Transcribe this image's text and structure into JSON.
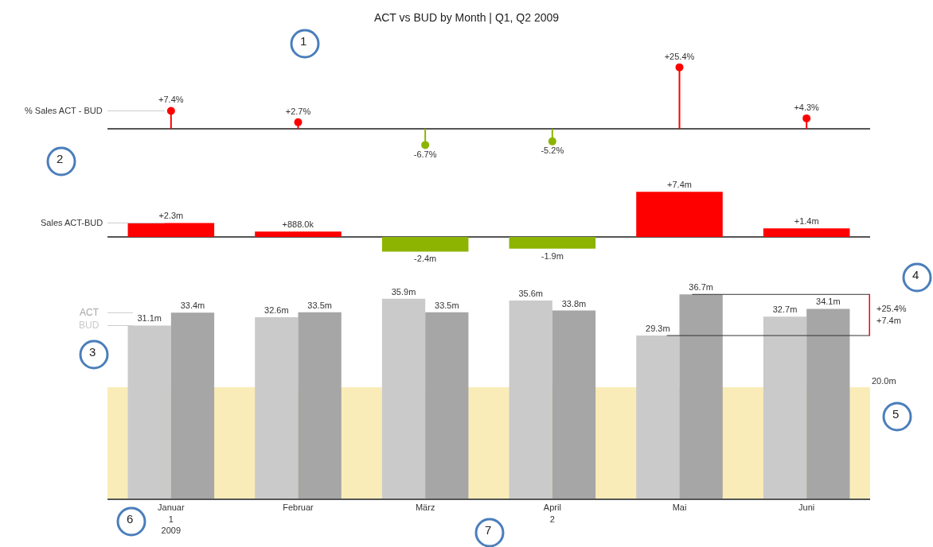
{
  "chart_data": [
    {
      "type": "lollipop",
      "title": "ACT vs BUD by Month | Q1, Q2 2009",
      "ylabel": "% Sales ACT - BUD",
      "categories": [
        "Januar\n1\n2009",
        "Februar",
        "März",
        "April\n2",
        "Mai",
        "Juni"
      ],
      "tick_labels": false,
      "marker": "circle",
      "values": [
        7.4,
        2.7,
        -6.7,
        -5.2,
        25.4,
        4.3
      ],
      "colors": [
        "#ff0000",
        "#ff0000",
        "#8cb400",
        "#8cb400",
        "#ff0000",
        "#ff0000"
      ],
      "value_labels": [
        "+7.4%",
        "+2.7%",
        "-6.7%",
        "-5.2%",
        "+25.4%",
        "+4.3%"
      ],
      "annotations": [
        "1",
        "2",
        "3",
        "4",
        "5",
        "6",
        "7"
      ]
    },
    {
      "type": "bar",
      "ylabel": "Sales ACT-BUD",
      "categories": [
        "Januar\n1\n2009",
        "Februar",
        "März",
        "April\n2",
        "Mai",
        "Juni"
      ],
      "tick_labels": false,
      "values": [
        2300000,
        888000,
        -2400000,
        -1900000,
        7400000,
        1400000
      ],
      "colors": [
        "#ff0000",
        "#ff0000",
        "#8cb400",
        "#8cb400",
        "#ff0000",
        "#ff0000"
      ],
      "value_labels": [
        "+2.3m",
        "+888.0k",
        "-2.4m",
        "-1.9m",
        "+7.4m",
        "+1.4m"
      ]
    },
    {
      "type": "bar",
      "categories": [
        "Januar\n1\n2009",
        "Februar",
        "März",
        "April\n2",
        "Mai",
        "Juni"
      ],
      "tick_labels": "x",
      "series": [
        {
          "name": "BUD",
          "color": "#cacaca",
          "values": [
            31.1,
            32.6,
            35.9,
            35.6,
            29.3,
            32.7
          ],
          "value_labels": [
            "31.1m",
            "32.6m",
            "35.9m",
            "35.6m",
            "29.3m",
            "32.7m"
          ]
        },
        {
          "name": "ACT",
          "color": "#a6a6a6",
          "values": [
            33.4,
            33.5,
            33.5,
            33.8,
            36.7,
            34.1
          ],
          "value_labels": [
            "33.4m",
            "33.5m",
            "33.5m",
            "33.8m",
            "36.7m",
            "34.1m"
          ]
        }
      ],
      "bands": [
        {
          "axis": "y",
          "from": 0,
          "to": 20,
          "label": "20.0m",
          "color": "#f9ecb8"
        }
      ],
      "annotations": [
        "+25.4%",
        "+7.4m"
      ]
    }
  ]
}
